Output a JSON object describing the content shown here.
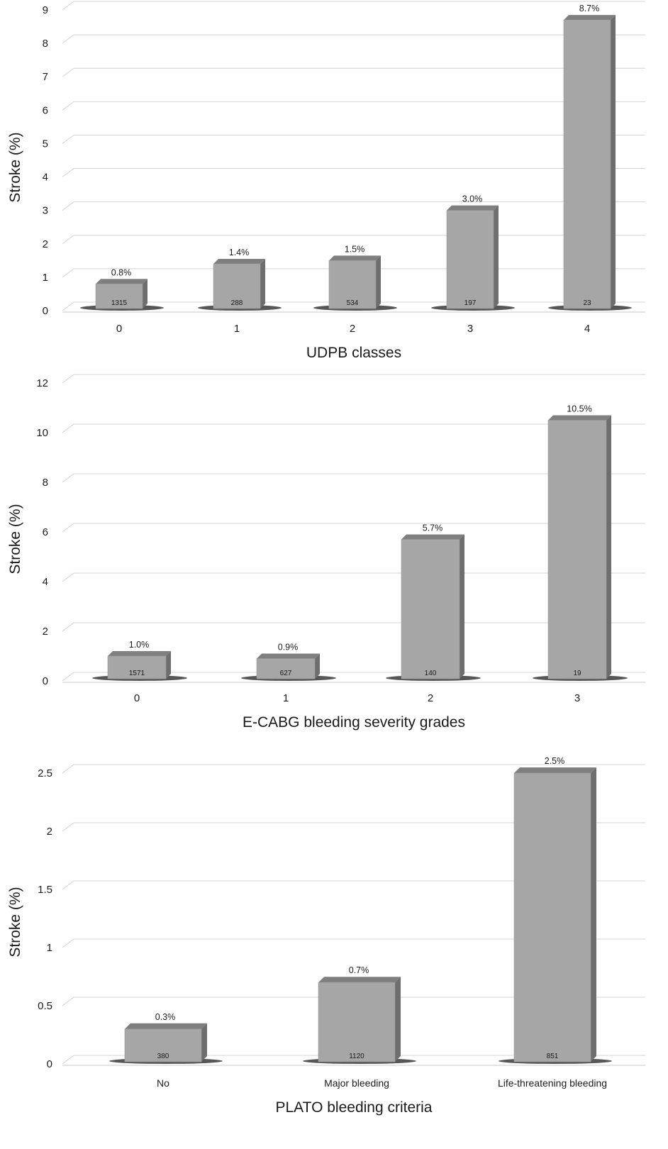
{
  "chart_data": [
    {
      "type": "bar",
      "categories": [
        "0",
        "1",
        "2",
        "3",
        "4"
      ],
      "values": [
        0.8,
        1.4,
        1.5,
        3.0,
        8.7
      ],
      "value_labels": [
        "0.8%",
        "1.4%",
        "1.5%",
        "3.0%",
        "8.7%"
      ],
      "counts": [
        "1315",
        "288",
        "534",
        "197",
        "23"
      ],
      "y_ticks": [
        "0",
        "1",
        "2",
        "3",
        "4",
        "5",
        "6",
        "7",
        "8",
        "9"
      ],
      "xlabel": "UDPB classes",
      "ylabel": "Stroke (%)",
      "ylim": [
        0,
        9
      ],
      "grid": true,
      "style": "3d-bar",
      "bar_color": "#a6a6a6"
    },
    {
      "type": "bar",
      "categories": [
        "0",
        "1",
        "2",
        "3"
      ],
      "values": [
        1.0,
        0.9,
        5.7,
        10.5
      ],
      "value_labels": [
        "1.0%",
        "0.9%",
        "5.7%",
        "10.5%"
      ],
      "counts": [
        "1571",
        "627",
        "140",
        "19"
      ],
      "y_ticks": [
        "0",
        "2",
        "4",
        "6",
        "8",
        "10",
        "12"
      ],
      "xlabel": "E-CABG bleeding severity grades",
      "ylabel": "Stroke (%)",
      "ylim": [
        0,
        12
      ],
      "grid": true,
      "style": "3d-bar",
      "bar_color": "#a6a6a6"
    },
    {
      "type": "bar",
      "categories": [
        "No",
        "Major bleeding",
        "Life-threatening bleeding"
      ],
      "values": [
        0.3,
        0.7,
        2.5
      ],
      "value_labels": [
        "0.3%",
        "0.7%",
        "2.5%"
      ],
      "counts": [
        "380",
        "1120",
        "851"
      ],
      "y_ticks": [
        "0",
        "0.5",
        "1",
        "1.5",
        "2",
        "2.5"
      ],
      "xlabel": "PLATO bleeding criteria",
      "ylabel": "Stroke (%)",
      "ylim": [
        0,
        2.5
      ],
      "grid": true,
      "style": "3d-bar",
      "bar_color": "#a6a6a6"
    }
  ]
}
